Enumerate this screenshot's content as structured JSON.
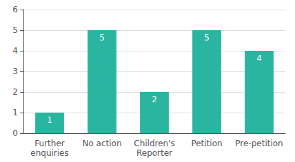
{
  "chart_data": {
    "type": "bar",
    "categories": [
      "Further\nenquiries",
      "No action",
      "Children's\nReporter",
      "Petition",
      "Pre-petition"
    ],
    "values": [
      1,
      5,
      2,
      5,
      4
    ],
    "color": "#2ab5a0",
    "ylim": [
      0,
      6
    ],
    "yticks": [
      0,
      1,
      2,
      3,
      4,
      5,
      6
    ],
    "grid": true,
    "data_labels": true
  }
}
